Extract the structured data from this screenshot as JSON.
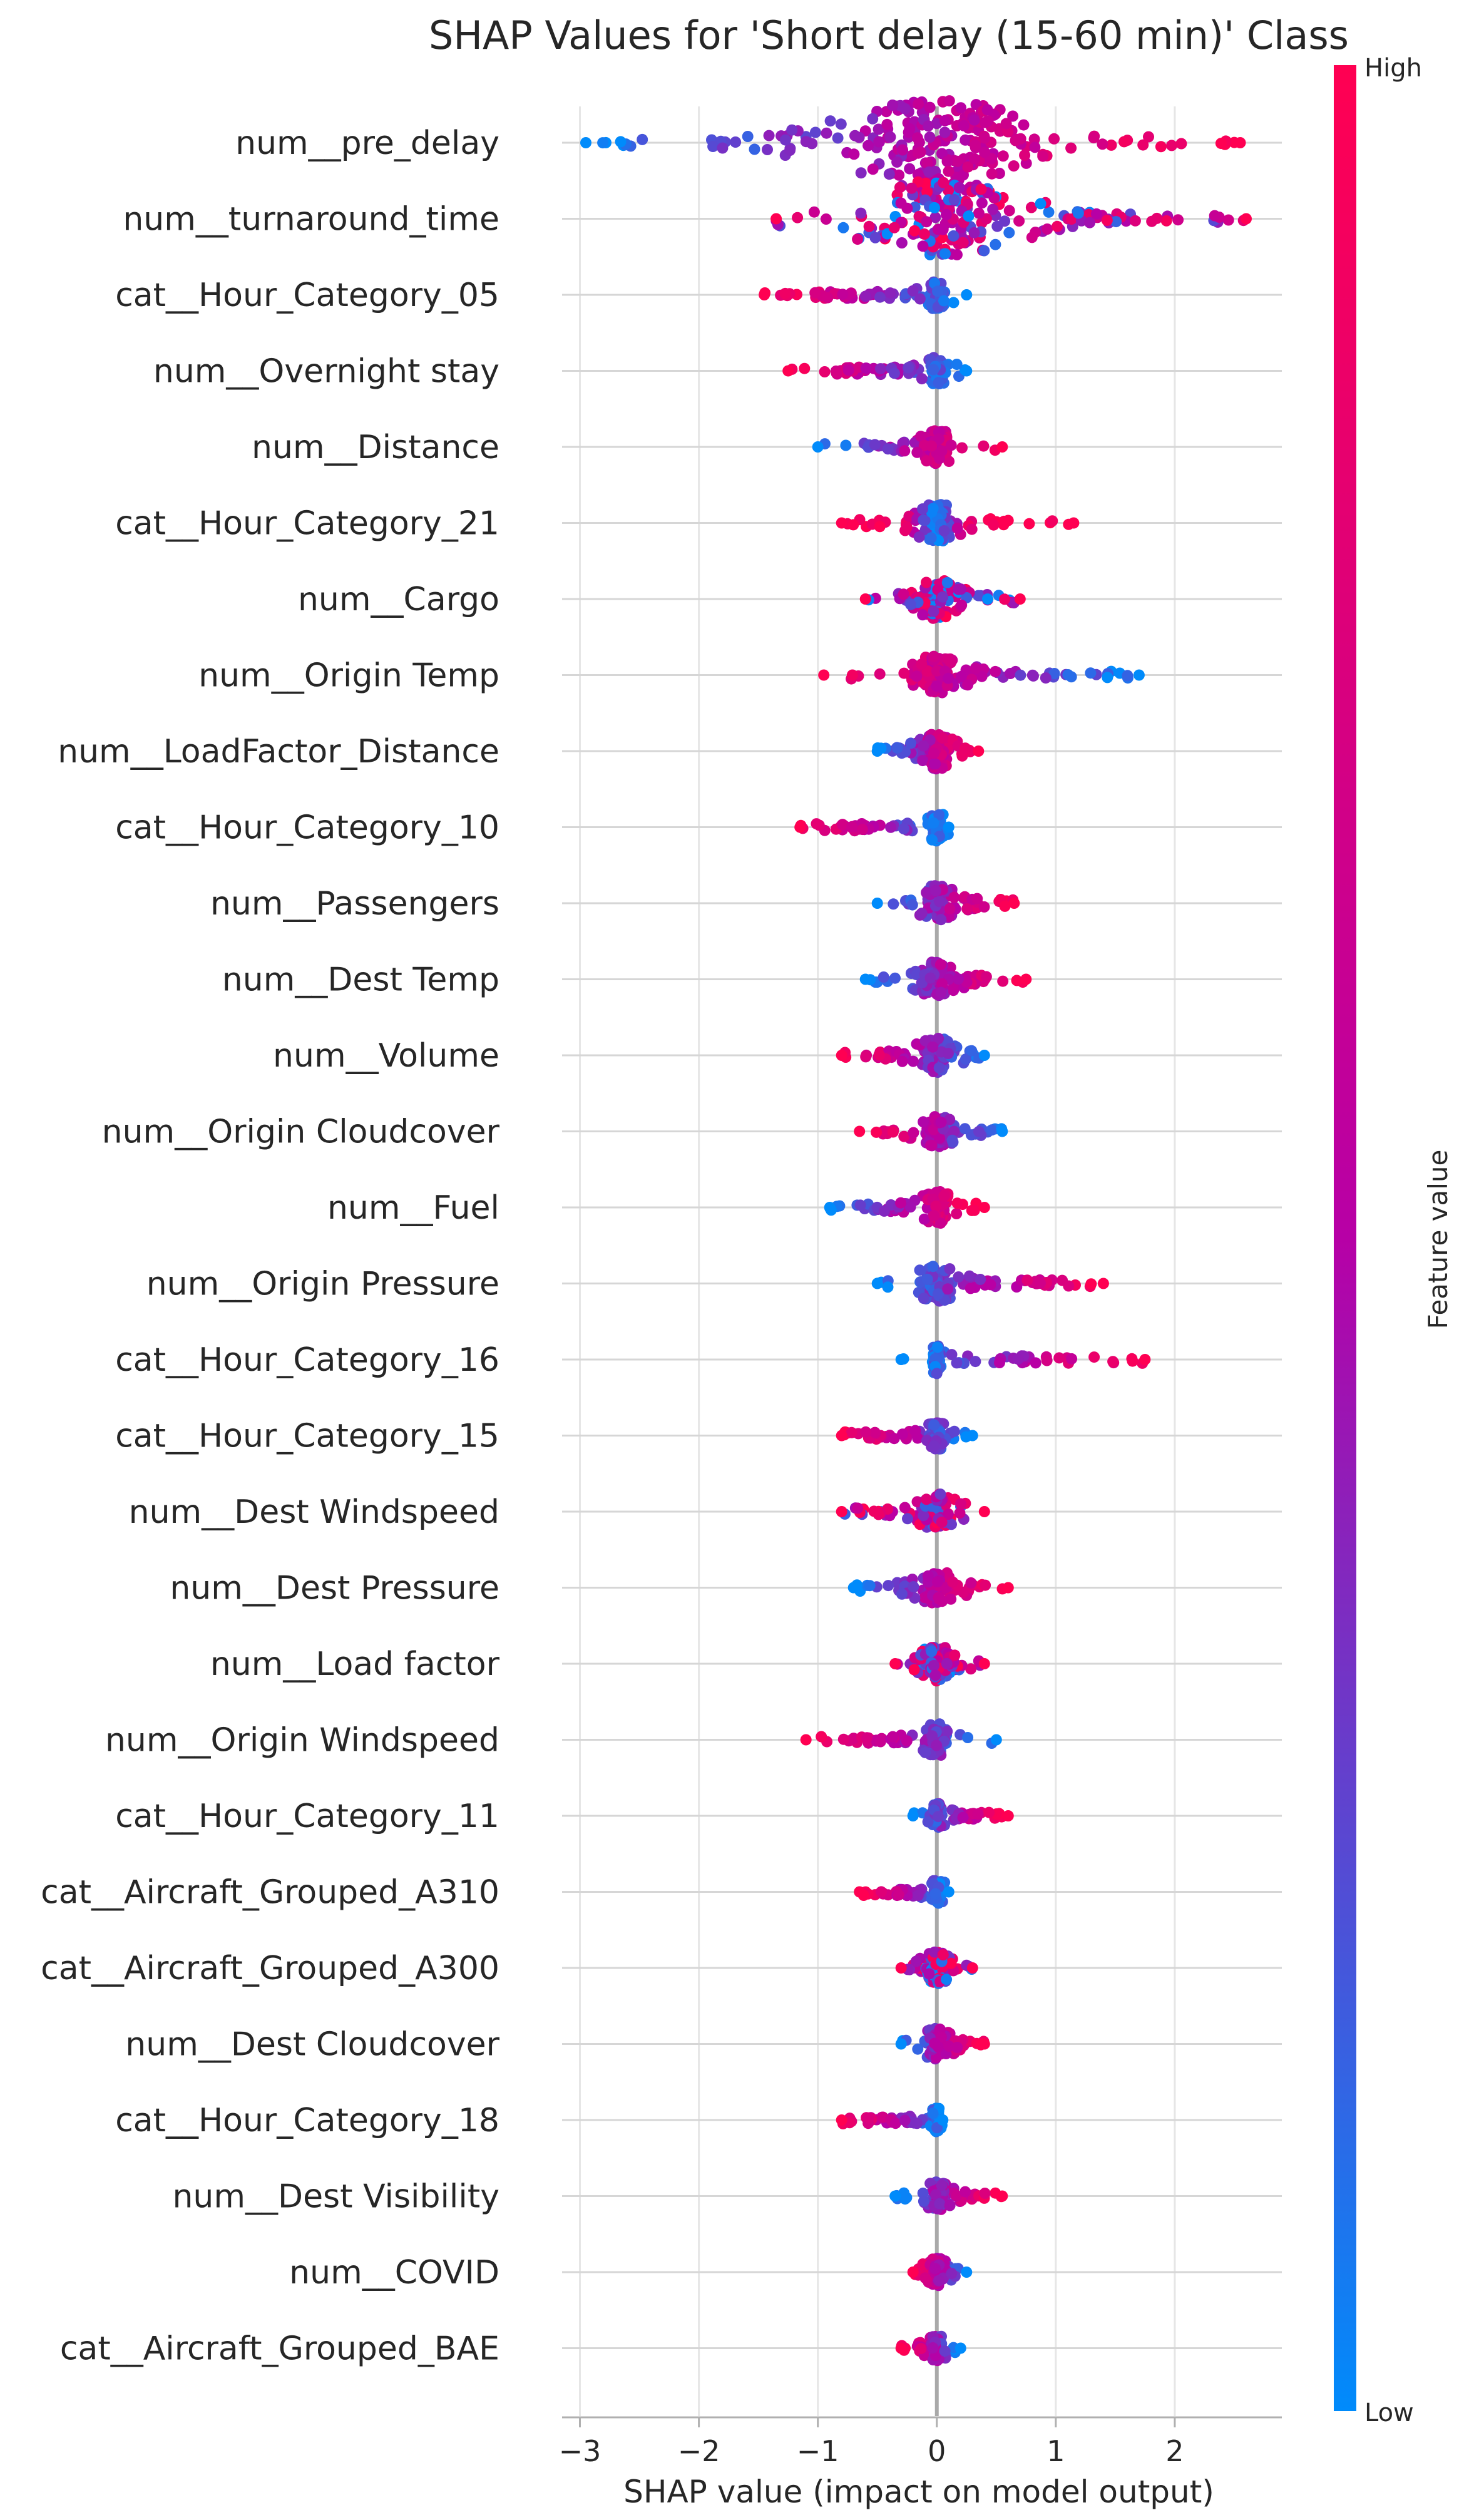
{
  "chart_data": {
    "type": "scatter",
    "subtype": "shap-beeswarm",
    "title": "SHAP Values for 'Short delay (15-60 min)' Class",
    "xlabel": "SHAP value (impact on model output)",
    "ylabel": "",
    "xlim": [
      -3.15,
      2.9
    ],
    "xticks": [
      -3,
      -2,
      -1,
      0,
      1,
      2
    ],
    "xtick_labels": [
      "−3",
      "−2",
      "−1",
      "0",
      "1",
      "2"
    ],
    "grid": true,
    "colorbar": {
      "label": "Feature value",
      "high_label": "High",
      "low_label": "Low",
      "colors": {
        "high": "#ff0052",
        "mid": "#b700a6",
        "low": "#008bfb"
      },
      "placement": "right"
    },
    "features": [
      {
        "name": "num__pre_delay",
        "min": -2.95,
        "max": 2.55,
        "spread": 1.0,
        "low_side": "left",
        "width": 2.2
      },
      {
        "name": "num__turnaround_time",
        "min": -1.35,
        "max": 2.6,
        "spread": 0.85,
        "low_side": "mixed",
        "width": 2.0
      },
      {
        "name": "cat__Hour_Category_05",
        "min": -1.45,
        "max": 0.25,
        "spread": 0.1,
        "low_side": "right",
        "width": 0.6
      },
      {
        "name": "num__Overnight stay",
        "min": -1.25,
        "max": 0.25,
        "spread": 0.1,
        "low_side": "right",
        "width": 0.6
      },
      {
        "name": "num__Distance",
        "min": -1.0,
        "max": 0.55,
        "spread": 0.15,
        "low_side": "left",
        "width": 0.8
      },
      {
        "name": "cat__Hour_Category_21",
        "min": -0.8,
        "max": 1.15,
        "spread": 0.2,
        "low_side": "center",
        "width": 0.9
      },
      {
        "name": "num__Cargo",
        "min": -0.6,
        "max": 0.7,
        "spread": 0.2,
        "low_side": "mixed",
        "width": 0.9
      },
      {
        "name": "num__Origin Temp",
        "min": -0.95,
        "max": 1.7,
        "spread": 0.25,
        "low_side": "right",
        "width": 0.9
      },
      {
        "name": "num__LoadFactor_Distance",
        "min": -0.5,
        "max": 0.35,
        "spread": 0.15,
        "low_side": "left",
        "width": 0.8
      },
      {
        "name": "cat__Hour_Category_10",
        "min": -1.15,
        "max": 0.1,
        "spread": 0.08,
        "low_side": "right",
        "width": 0.6
      },
      {
        "name": "num__Passengers",
        "min": -0.5,
        "max": 0.65,
        "spread": 0.18,
        "low_side": "left",
        "width": 0.8
      },
      {
        "name": "num__Dest Temp",
        "min": -0.6,
        "max": 0.75,
        "spread": 0.18,
        "low_side": "left",
        "width": 0.8
      },
      {
        "name": "num__Volume",
        "min": -0.8,
        "max": 0.4,
        "spread": 0.18,
        "low_side": "right",
        "width": 0.8
      },
      {
        "name": "num__Origin Cloudcover",
        "min": -0.65,
        "max": 0.55,
        "spread": 0.15,
        "low_side": "right",
        "width": 0.7
      },
      {
        "name": "num__Fuel",
        "min": -0.9,
        "max": 0.4,
        "spread": 0.15,
        "low_side": "left",
        "width": 0.7
      },
      {
        "name": "num__Origin Pressure",
        "min": -0.5,
        "max": 1.4,
        "spread": 0.2,
        "low_side": "left",
        "width": 0.8
      },
      {
        "name": "cat__Hour_Category_16",
        "min": -0.3,
        "max": 1.75,
        "spread": 0.05,
        "low_side": "left",
        "width": 0.6
      },
      {
        "name": "cat__Hour_Category_15",
        "min": -0.8,
        "max": 0.3,
        "spread": 0.08,
        "low_side": "right",
        "width": 0.6
      },
      {
        "name": "num__Dest Windspeed",
        "min": -0.8,
        "max": 0.4,
        "spread": 0.18,
        "low_side": "mixed",
        "width": 0.8
      },
      {
        "name": "num__Dest Pressure",
        "min": -0.7,
        "max": 0.6,
        "spread": 0.18,
        "low_side": "left",
        "width": 0.8
      },
      {
        "name": "num__Load factor",
        "min": -0.35,
        "max": 0.4,
        "spread": 0.15,
        "low_side": "mixed",
        "width": 0.8
      },
      {
        "name": "num__Origin Windspeed",
        "min": -1.1,
        "max": 0.5,
        "spread": 0.15,
        "low_side": "right",
        "width": 0.7
      },
      {
        "name": "cat__Hour_Category_11",
        "min": -0.2,
        "max": 0.6,
        "spread": 0.06,
        "low_side": "left",
        "width": 0.5
      },
      {
        "name": "cat__Aircraft_Grouped_A310",
        "min": -0.65,
        "max": 0.1,
        "spread": 0.06,
        "low_side": "right",
        "width": 0.5
      },
      {
        "name": "cat__Aircraft_Grouped_A300",
        "min": -0.3,
        "max": 0.3,
        "spread": 0.12,
        "low_side": "mixed",
        "width": 0.7
      },
      {
        "name": "num__Dest Cloudcover",
        "min": -0.3,
        "max": 0.4,
        "spread": 0.12,
        "low_side": "left",
        "width": 0.7
      },
      {
        "name": "cat__Hour_Category_18",
        "min": -0.8,
        "max": 0.05,
        "spread": 0.05,
        "low_side": "right",
        "width": 0.5
      },
      {
        "name": "num__Dest Visibility",
        "min": -0.35,
        "max": 0.55,
        "spread": 0.12,
        "low_side": "left",
        "width": 0.6
      },
      {
        "name": "num__COVID",
        "min": -0.2,
        "max": 0.25,
        "spread": 0.08,
        "low_side": "right",
        "width": 0.6
      },
      {
        "name": "cat__Aircraft_Grouped_BAE",
        "min": -0.3,
        "max": 0.2,
        "spread": 0.08,
        "low_side": "right",
        "width": 0.5
      }
    ]
  }
}
